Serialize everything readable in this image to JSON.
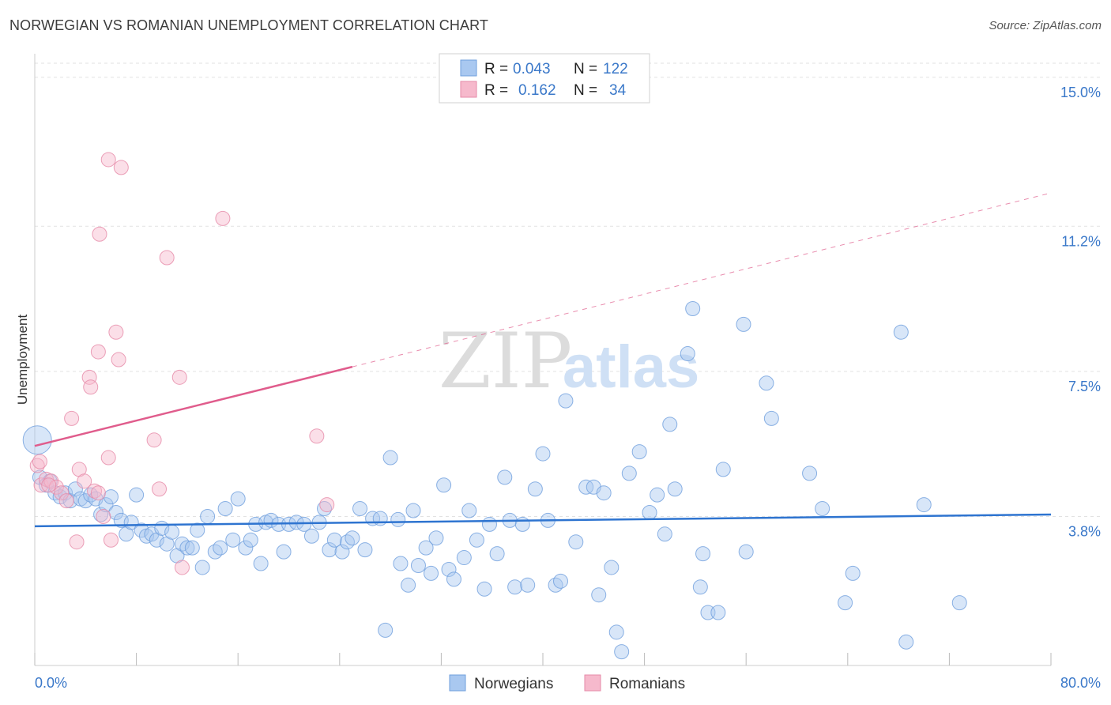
{
  "header": {
    "title": "NORWEGIAN VS ROMANIAN UNEMPLOYMENT CORRELATION CHART",
    "source": "Source: ZipAtlas.com"
  },
  "watermark": {
    "zip": "ZIP",
    "atlas": "atlas"
  },
  "legend": {
    "r_label": "R =",
    "n_label": "N =",
    "rows": [
      {
        "r": "0.043",
        "n": "122",
        "color": "#a9c8f0"
      },
      {
        "r": "0.162",
        "n": "34",
        "color": "#f6b9cc"
      }
    ]
  },
  "bottom_legend": {
    "items": [
      "Norwegians",
      "Romanians"
    ]
  },
  "colors": {
    "blue": "#2e74d0",
    "blue_fill": "#a9c8f0",
    "pink": "#e05c8c",
    "pink_fill": "#f6b9cc",
    "tick": "#3a78c9"
  },
  "chart_data": {
    "type": "scatter",
    "title": "NORWEGIAN VS ROMANIAN UNEMPLOYMENT CORRELATION CHART",
    "ylabel": "Unemployment",
    "xlabel": "",
    "xlim": [
      0,
      80
    ],
    "ylim": [
      0,
      15.6
    ],
    "x_tick_labels": [
      "0.0%",
      "80.0%"
    ],
    "y_ticks": [
      3.8,
      7.5,
      11.2,
      15.0
    ],
    "y_tick_labels": [
      "3.8%",
      "7.5%",
      "11.2%",
      "15.0%"
    ],
    "grid": true,
    "series": [
      {
        "name": "Norwegians",
        "r": 0.043,
        "n": 122,
        "trend": {
          "x0": 0,
          "y0": 3.55,
          "x1": 80,
          "y1": 3.85
        },
        "points": [
          [
            0.4,
            4.8
          ],
          [
            0.9,
            4.6
          ],
          [
            1.2,
            4.7
          ],
          [
            1.6,
            4.4
          ],
          [
            2.0,
            4.3
          ],
          [
            2.4,
            4.4
          ],
          [
            2.8,
            4.2
          ],
          [
            3.2,
            4.5
          ],
          [
            3.6,
            4.25
          ],
          [
            4.0,
            4.2
          ],
          [
            4.4,
            4.35
          ],
          [
            4.8,
            4.25
          ],
          [
            5.2,
            3.85
          ],
          [
            5.6,
            4.1
          ],
          [
            6.0,
            4.3
          ],
          [
            6.4,
            3.9
          ],
          [
            6.8,
            3.7
          ],
          [
            7.2,
            3.35
          ],
          [
            7.6,
            3.65
          ],
          [
            8.0,
            4.35
          ],
          [
            8.4,
            3.45
          ],
          [
            8.8,
            3.3
          ],
          [
            9.2,
            3.35
          ],
          [
            9.6,
            3.2
          ],
          [
            10.0,
            3.5
          ],
          [
            10.4,
            3.1
          ],
          [
            10.8,
            3.4
          ],
          [
            11.2,
            2.8
          ],
          [
            11.6,
            3.1
          ],
          [
            12.0,
            3.0
          ],
          [
            12.4,
            3.0
          ],
          [
            12.8,
            3.45
          ],
          [
            13.2,
            2.5
          ],
          [
            13.6,
            3.8
          ],
          [
            14.2,
            2.9
          ],
          [
            14.6,
            3.0
          ],
          [
            15.0,
            4.0
          ],
          [
            15.6,
            3.2
          ],
          [
            16.0,
            4.25
          ],
          [
            16.6,
            3.0
          ],
          [
            17.0,
            3.2
          ],
          [
            17.4,
            3.6
          ],
          [
            17.8,
            2.6
          ],
          [
            18.2,
            3.65
          ],
          [
            18.6,
            3.7
          ],
          [
            19.2,
            3.6
          ],
          [
            19.6,
            2.9
          ],
          [
            20.0,
            3.6
          ],
          [
            20.6,
            3.65
          ],
          [
            21.2,
            3.6
          ],
          [
            21.8,
            3.3
          ],
          [
            22.4,
            3.65
          ],
          [
            22.8,
            4.0
          ],
          [
            23.2,
            2.95
          ],
          [
            23.6,
            3.2
          ],
          [
            24.2,
            2.9
          ],
          [
            24.6,
            3.15
          ],
          [
            25.0,
            3.25
          ],
          [
            25.6,
            4.0
          ],
          [
            26.0,
            2.95
          ],
          [
            26.6,
            3.75
          ],
          [
            27.2,
            3.75
          ],
          [
            27.6,
            0.9
          ],
          [
            28.0,
            5.3
          ],
          [
            28.6,
            3.72
          ],
          [
            28.8,
            2.6
          ],
          [
            29.4,
            2.05
          ],
          [
            29.8,
            3.95
          ],
          [
            30.2,
            2.55
          ],
          [
            30.8,
            3.0
          ],
          [
            31.2,
            2.35
          ],
          [
            31.6,
            3.25
          ],
          [
            32.2,
            4.6
          ],
          [
            32.6,
            2.45
          ],
          [
            33.0,
            2.2
          ],
          [
            33.8,
            2.75
          ],
          [
            34.2,
            3.95
          ],
          [
            34.8,
            3.2
          ],
          [
            35.4,
            1.95
          ],
          [
            35.8,
            3.6
          ],
          [
            36.4,
            2.85
          ],
          [
            37.0,
            4.8
          ],
          [
            37.4,
            3.7
          ],
          [
            37.8,
            2.0
          ],
          [
            38.4,
            3.6
          ],
          [
            38.8,
            2.05
          ],
          [
            39.4,
            4.5
          ],
          [
            40.0,
            5.4
          ],
          [
            40.4,
            3.7
          ],
          [
            41.0,
            2.05
          ],
          [
            41.4,
            2.15
          ],
          [
            41.8,
            6.75
          ],
          [
            42.6,
            3.15
          ],
          [
            43.4,
            4.55
          ],
          [
            44.0,
            4.55
          ],
          [
            44.4,
            1.8
          ],
          [
            44.8,
            4.4
          ],
          [
            45.4,
            2.5
          ],
          [
            45.8,
            0.85
          ],
          [
            46.2,
            0.35
          ],
          [
            46.8,
            4.9
          ],
          [
            47.6,
            5.45
          ],
          [
            48.4,
            3.9
          ],
          [
            49.0,
            4.35
          ],
          [
            49.6,
            3.35
          ],
          [
            50.0,
            6.15
          ],
          [
            50.4,
            4.5
          ],
          [
            51.4,
            7.95
          ],
          [
            51.8,
            9.1
          ],
          [
            52.4,
            2.0
          ],
          [
            52.6,
            2.85
          ],
          [
            53.0,
            1.35
          ],
          [
            53.8,
            1.35
          ],
          [
            54.2,
            5.0
          ],
          [
            55.8,
            8.7
          ],
          [
            56.0,
            2.9
          ],
          [
            57.6,
            7.2
          ],
          [
            58.0,
            6.3
          ],
          [
            61.0,
            4.9
          ],
          [
            62.0,
            4.0
          ],
          [
            63.8,
            1.6
          ],
          [
            64.4,
            2.35
          ],
          [
            68.6,
            0.6
          ],
          [
            68.2,
            8.5
          ],
          [
            70.0,
            4.1
          ],
          [
            72.8,
            1.6
          ],
          [
            0.2,
            5.75
          ]
        ]
      },
      {
        "name": "Romanians",
        "r": 0.162,
        "n": 34,
        "trend": {
          "x0": 0,
          "y0": 5.6,
          "x1": 80,
          "y1": 12.05,
          "solid_to_x": 25
        },
        "points": [
          [
            0.2,
            5.1
          ],
          [
            0.5,
            4.6
          ],
          [
            0.9,
            4.75
          ],
          [
            1.3,
            4.7
          ],
          [
            1.7,
            4.55
          ],
          [
            2.1,
            4.4
          ],
          [
            2.5,
            4.2
          ],
          [
            2.9,
            6.3
          ],
          [
            3.3,
            3.15
          ],
          [
            3.5,
            5.0
          ],
          [
            3.9,
            4.7
          ],
          [
            4.3,
            7.35
          ],
          [
            4.4,
            7.1
          ],
          [
            4.7,
            4.45
          ],
          [
            5.0,
            4.4
          ],
          [
            5.1,
            11.0
          ],
          [
            5.0,
            8.0
          ],
          [
            5.4,
            3.8
          ],
          [
            5.8,
            12.9
          ],
          [
            5.8,
            5.3
          ],
          [
            6.0,
            3.2
          ],
          [
            6.4,
            8.5
          ],
          [
            6.6,
            7.8
          ],
          [
            6.8,
            12.7
          ],
          [
            9.4,
            5.75
          ],
          [
            9.8,
            4.5
          ],
          [
            10.4,
            10.4
          ],
          [
            11.6,
            2.5
          ],
          [
            11.4,
            7.35
          ],
          [
            14.8,
            11.4
          ],
          [
            22.2,
            5.85
          ],
          [
            23.0,
            4.1
          ],
          [
            0.4,
            5.2
          ],
          [
            1.1,
            4.6
          ]
        ]
      }
    ]
  }
}
